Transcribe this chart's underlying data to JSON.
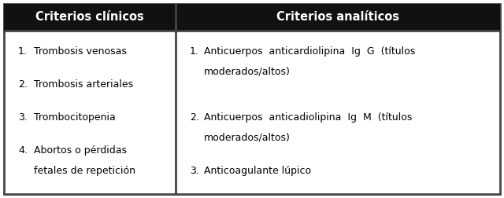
{
  "header_left": "Criterios clínicos",
  "header_right": "Criterios analíticos",
  "header_bg": "#111111",
  "header_fg": "#ffffff",
  "body_bg": "#ffffff",
  "body_fg": "#000000",
  "border_color": "#444444",
  "col1_lines": [
    [
      "1.",
      "Trombosis venosas"
    ],
    [
      "2.",
      "Trombosis arteriales"
    ],
    [
      "3.",
      "Trombocitopenia"
    ],
    [
      "4.",
      "Abortos o pérdidas"
    ],
    [
      "",
      "fetales de repetición"
    ]
  ],
  "col2_blocks": [
    {
      "num": "1.",
      "line1": "Anticuerpos  anticardiolipina  Ig  G  (títulos",
      "line2": "moderados/altos)"
    },
    {
      "num": "2.",
      "line1": "Anticuerpos  anticadiolipina  Ig  M  (títulos",
      "line2": "moderados/altos)"
    },
    {
      "num": "3.",
      "line1": "Anticoagulante lúpico",
      "line2": ""
    }
  ],
  "figsize": [
    6.4,
    2.52
  ],
  "dpi": 100
}
